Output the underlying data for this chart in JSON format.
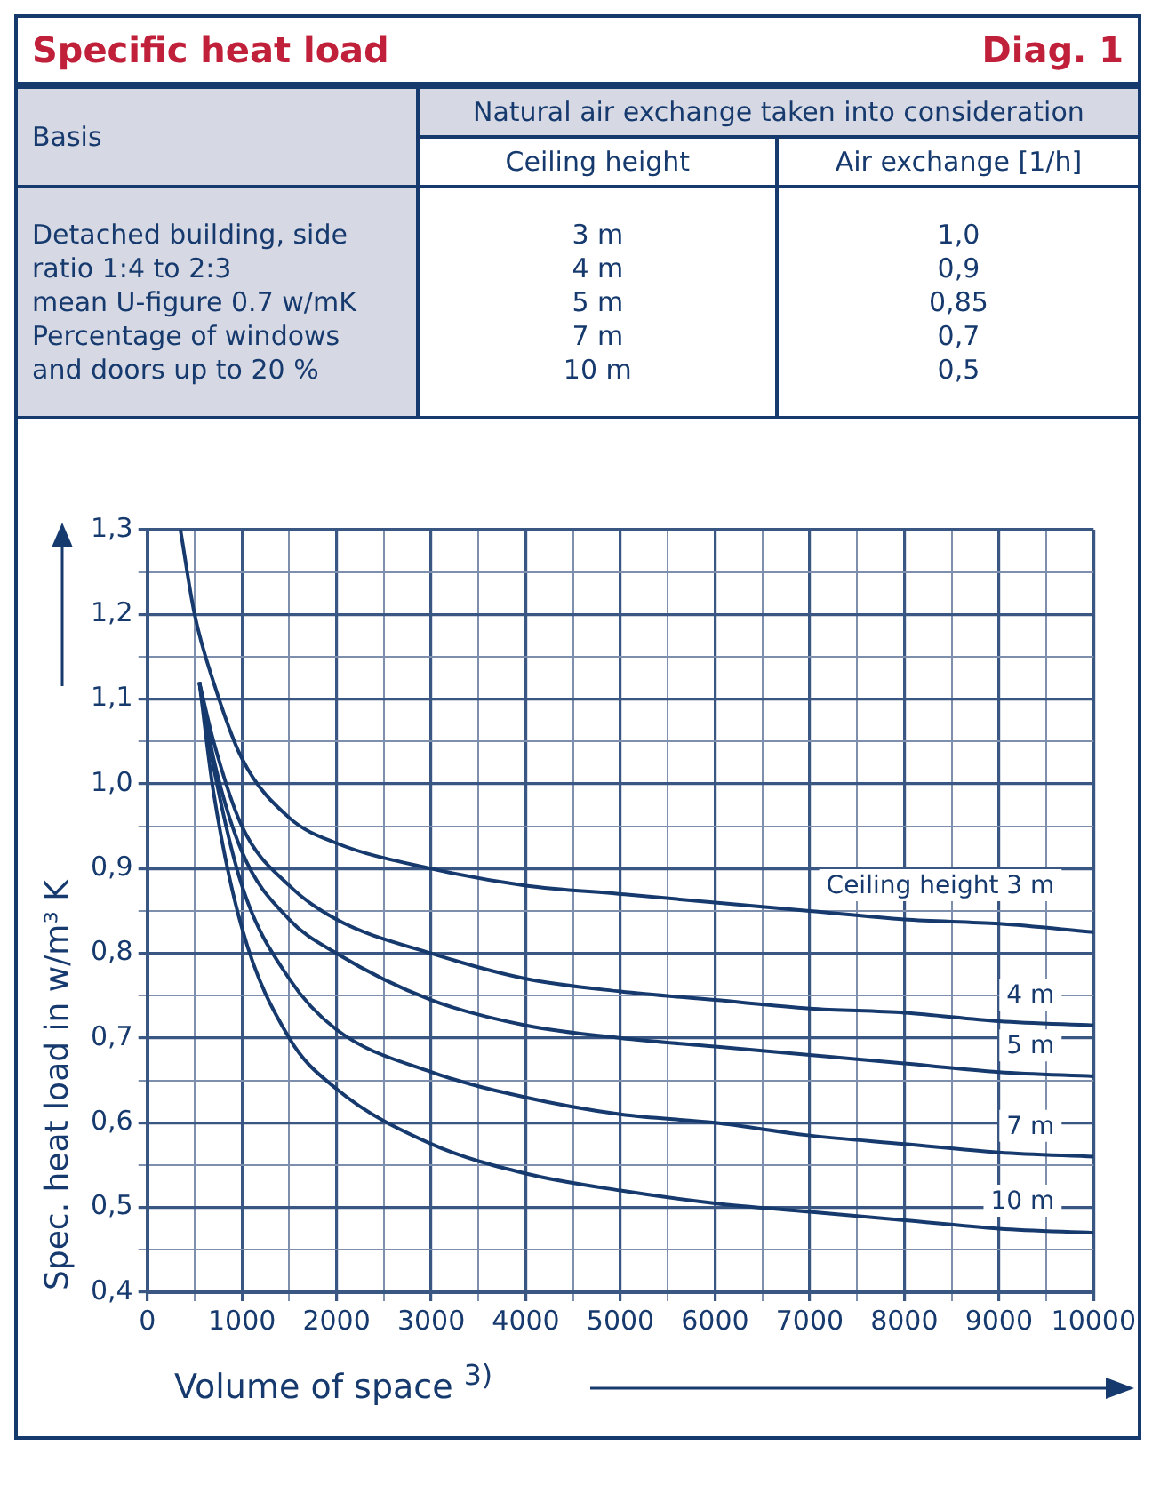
{
  "chart_data": [
    {
      "type": "other",
      "title": "Specific heat load",
      "subtitle": "Diag. 1",
      "annotations": [
        "Basis",
        "Natural air exchange taken into consideration",
        "Ceiling height",
        "Air exchange [1/h]",
        "Detached building, side\nratio 1:4 to 2:3\nmean U-figure 0.7 w/mK\nPercentage of windows\nand doors up to 20 %",
        "3 m\n4 m\n5 m\n7 m\n10 m",
        "1,0\n0,9\n0,85\n0,7\n0,5"
      ]
    },
    {
      "type": "line",
      "xlabel": "Volume of space $^{3)}$",
      "ylabel": "Spec. heat load in w/m³ K",
      "xlim": [
        0,
        10000
      ],
      "ylim": [
        0.4,
        1.3
      ],
      "xticks": [
        0,
        {
          "value": 500,
          "label": null
        },
        1000,
        {
          "value": 1500,
          "label": null
        },
        2000,
        {
          "value": 2500,
          "label": null
        },
        3000,
        {
          "value": 3500,
          "label": null
        },
        4000,
        {
          "value": 4500,
          "label": null
        },
        5000,
        {
          "value": 5500,
          "label": null
        },
        6000,
        {
          "value": 6500,
          "label": null
        },
        7000,
        {
          "value": 7500,
          "label": null
        },
        8000,
        {
          "value": 8500,
          "label": null
        },
        9000,
        {
          "value": 9500,
          "label": null
        },
        10000
      ],
      "yticks": [
        {
          "value": 0.4,
          "label": "0,4"
        },
        {
          "value": 0.45,
          "label": null
        },
        {
          "value": 0.5,
          "label": "0,5"
        },
        {
          "value": 0.55,
          "label": null
        },
        {
          "value": 0.6,
          "label": "0,6"
        },
        {
          "value": 0.65,
          "label": null
        },
        {
          "value": 0.7,
          "label": "0,7"
        },
        {
          "value": 0.75,
          "label": null
        },
        {
          "value": 0.8,
          "label": "0,8"
        },
        {
          "value": 0.85,
          "label": null
        },
        {
          "value": 0.9,
          "label": "0,9"
        },
        {
          "value": 0.95,
          "label": null
        },
        {
          "value": 1.0,
          "label": "1,0"
        },
        {
          "value": 1.05,
          "label": null
        },
        {
          "value": 1.1,
          "label": "1,1"
        },
        {
          "value": 1.15,
          "label": null
        },
        {
          "value": 1.2,
          "label": "1,2"
        },
        {
          "value": 1.25,
          "label": null
        },
        {
          "value": 1.3,
          "label": "1,3"
        }
      ],
      "grid": true,
      "legend": false,
      "marker": "none",
      "line_style": "solid",
      "series": [
        {
          "name": "Ceiling height 3 m",
          "color": "#163a6e",
          "x": [
            350,
            500,
            700,
            1000,
            1500,
            2000,
            3000,
            4000,
            5000,
            6000,
            7000,
            8000,
            9000,
            10000
          ],
          "values": [
            1.3,
            1.2,
            1.12,
            1.03,
            0.96,
            0.93,
            0.9,
            0.88,
            0.87,
            0.86,
            0.85,
            0.84,
            0.835,
            0.825
          ]
        },
        {
          "name": "4 m",
          "color": "#163a6e",
          "x": [
            550,
            700,
            1000,
            1500,
            2000,
            3000,
            4000,
            5000,
            6000,
            7000,
            8000,
            9000,
            10000
          ],
          "values": [
            1.12,
            1.05,
            0.95,
            0.88,
            0.84,
            0.8,
            0.77,
            0.755,
            0.745,
            0.735,
            0.73,
            0.72,
            0.715
          ]
        },
        {
          "name": "5 m",
          "color": "#163a6e",
          "x": [
            550,
            700,
            1000,
            1500,
            2000,
            3000,
            4000,
            5000,
            6000,
            7000,
            8000,
            9000,
            10000
          ],
          "values": [
            1.12,
            1.03,
            0.92,
            0.84,
            0.8,
            0.745,
            0.715,
            0.7,
            0.69,
            0.68,
            0.67,
            0.66,
            0.655
          ]
        },
        {
          "name": "7 m",
          "color": "#163a6e",
          "x": [
            550,
            700,
            1000,
            1500,
            2000,
            3000,
            4000,
            5000,
            6000,
            7000,
            8000,
            9000,
            10000
          ],
          "values": [
            1.12,
            1.02,
            0.88,
            0.77,
            0.71,
            0.66,
            0.63,
            0.61,
            0.6,
            0.585,
            0.575,
            0.565,
            0.56
          ]
        },
        {
          "name": "10 m",
          "color": "#163a6e",
          "x": [
            550,
            700,
            1000,
            1500,
            2000,
            3000,
            4000,
            5000,
            6000,
            7000,
            8000,
            9000,
            10000
          ],
          "values": [
            1.12,
            0.99,
            0.83,
            0.7,
            0.64,
            0.575,
            0.54,
            0.52,
            0.505,
            0.495,
            0.485,
            0.475,
            0.47
          ]
        }
      ]
    }
  ]
}
